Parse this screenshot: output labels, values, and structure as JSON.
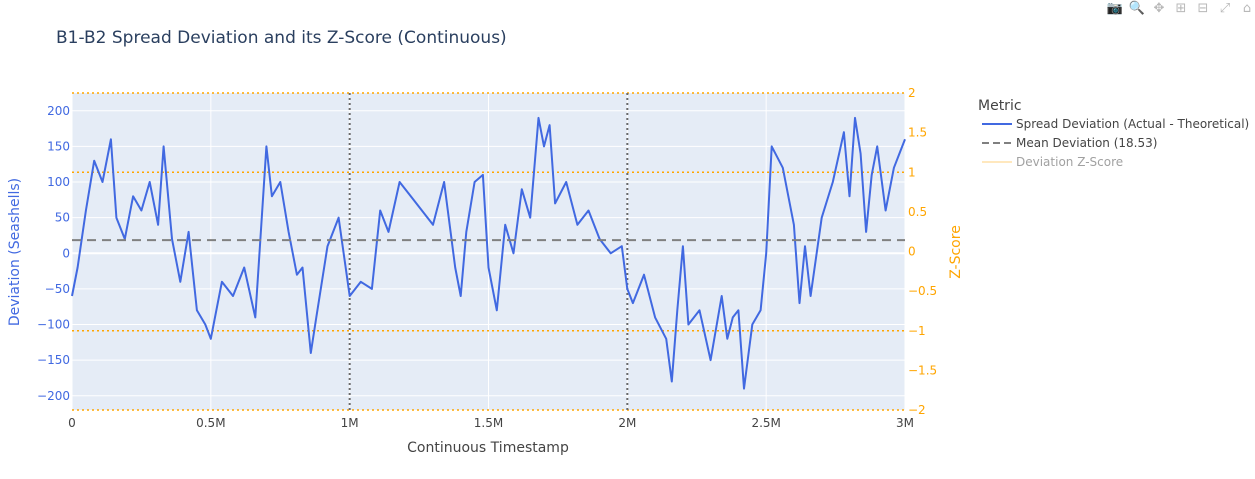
{
  "modebar": {
    "icons": [
      {
        "name": "camera-icon",
        "glyph": "📷"
      },
      {
        "name": "zoom-icon",
        "glyph": "🔍"
      },
      {
        "name": "pan-icon",
        "glyph": "✥"
      },
      {
        "name": "zoom-in-icon",
        "glyph": "⊞"
      },
      {
        "name": "zoom-out-icon",
        "glyph": "⊟"
      },
      {
        "name": "autoscale-icon",
        "glyph": "⤢"
      },
      {
        "name": "home-icon",
        "glyph": "⌂"
      }
    ]
  },
  "colors": {
    "spread": "#4169e1",
    "mean": "#808080",
    "zscore": "#ffa500",
    "plot_bg": "#e5ecf6",
    "grid": "#ffffff",
    "vline": "#696969",
    "title": "#2a3f5f"
  },
  "chart_data": {
    "type": "line",
    "title": "B1-B2 Spread Deviation and its Z-Score (Continuous)",
    "xlabel": "Continuous Timestamp",
    "ylabel": "Deviation (Seashells)",
    "y2label": "Z-Score",
    "xlim": [
      0,
      3000000
    ],
    "ylim": [
      -220,
      225
    ],
    "y2lim": [
      -2,
      2
    ],
    "x_ticks": [
      0,
      500000,
      1000000,
      1500000,
      2000000,
      2500000,
      3000000
    ],
    "x_tick_labels": [
      "0",
      "0.5M",
      "1M",
      "1.5M",
      "2M",
      "2.5M",
      "3M"
    ],
    "y_ticks": [
      -200,
      -150,
      -100,
      -50,
      0,
      50,
      100,
      150,
      200
    ],
    "y_tick_labels": [
      "−200",
      "−150",
      "−100",
      "−50",
      "0",
      "50",
      "100",
      "150",
      "200"
    ],
    "y2_ticks": [
      -2,
      -1.5,
      -1,
      -0.5,
      0,
      0.5,
      1,
      1.5,
      2
    ],
    "y2_tick_labels": [
      "−2",
      "−1.5",
      "−1",
      "−0.5",
      "0",
      "0.5",
      "1",
      "1.5",
      "2"
    ],
    "z_reference_lines": [
      2,
      1,
      -1,
      -2
    ],
    "vertical_lines_x": [
      1000000,
      2000000
    ],
    "grid": true,
    "legend": {
      "title": "Metric",
      "placement": "right",
      "entries": [
        {
          "name": "Spread Deviation (Actual - Theoretical)",
          "style": "solid",
          "color": "#4169e1",
          "dimmed": false
        },
        {
          "name": "Mean Deviation (18.53)",
          "style": "dash",
          "color": "#808080",
          "dimmed": false
        },
        {
          "name": "Deviation Z-Score",
          "style": "solid",
          "color": "#ffa500",
          "dimmed": true
        }
      ]
    },
    "series": [
      {
        "name": "Spread Deviation (Actual - Theoretical)",
        "x": [
          0,
          20000,
          50000,
          80000,
          110000,
          140000,
          160000,
          190000,
          220000,
          250000,
          280000,
          310000,
          330000,
          360000,
          390000,
          420000,
          450000,
          480000,
          500000,
          540000,
          580000,
          620000,
          660000,
          700000,
          720000,
          750000,
          780000,
          810000,
          830000,
          860000,
          880000,
          920000,
          960000,
          1000000,
          1040000,
          1080000,
          1110000,
          1140000,
          1180000,
          1220000,
          1260000,
          1300000,
          1340000,
          1380000,
          1400000,
          1420000,
          1450000,
          1480000,
          1500000,
          1530000,
          1560000,
          1590000,
          1620000,
          1650000,
          1680000,
          1700000,
          1720000,
          1740000,
          1780000,
          1820000,
          1860000,
          1900000,
          1940000,
          1980000,
          2000000,
          2020000,
          2060000,
          2100000,
          2140000,
          2160000,
          2180000,
          2200000,
          2220000,
          2260000,
          2300000,
          2340000,
          2360000,
          2380000,
          2400000,
          2420000,
          2450000,
          2480000,
          2500000,
          2520000,
          2560000,
          2600000,
          2620000,
          2640000,
          2660000,
          2700000,
          2740000,
          2780000,
          2800000,
          2820000,
          2840000,
          2860000,
          2880000,
          2900000,
          2930000,
          2960000,
          2980000,
          3000000
        ],
        "values": [
          -60,
          -20,
          60,
          130,
          100,
          160,
          50,
          20,
          80,
          60,
          100,
          40,
          150,
          20,
          -40,
          30,
          -80,
          -100,
          -120,
          -40,
          -60,
          -20,
          -90,
          150,
          80,
          100,
          30,
          -30,
          -20,
          -140,
          -90,
          10,
          50,
          -60,
          -40,
          -50,
          60,
          30,
          100,
          80,
          60,
          40,
          100,
          -20,
          -60,
          30,
          100,
          110,
          -20,
          -80,
          40,
          0,
          90,
          50,
          190,
          150,
          180,
          70,
          100,
          40,
          60,
          20,
          0,
          10,
          -50,
          -70,
          -30,
          -90,
          -120,
          -180,
          -80,
          10,
          -100,
          -80,
          -150,
          -60,
          -120,
          -90,
          -80,
          -190,
          -100,
          -80,
          0,
          150,
          120,
          40,
          -70,
          10,
          -60,
          50,
          100,
          170,
          80,
          190,
          140,
          30,
          110,
          150,
          60,
          120,
          140,
          160
        ]
      },
      {
        "name": "Mean Deviation (18.53)",
        "x": [
          0,
          3000000
        ],
        "values": [
          18.53,
          18.53
        ]
      }
    ]
  }
}
